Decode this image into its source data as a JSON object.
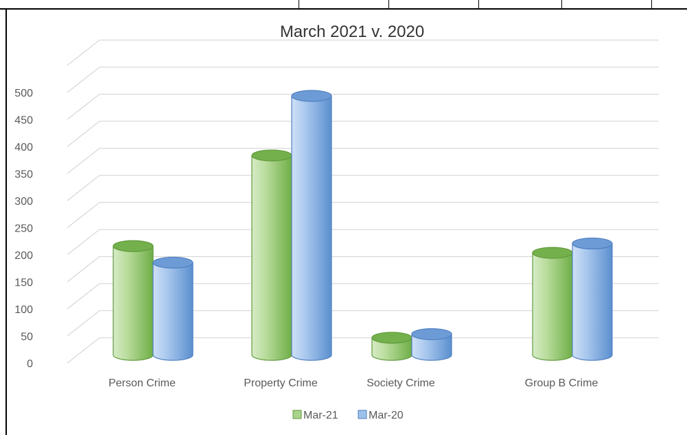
{
  "chart_data": {
    "type": "bar",
    "title": "March 2021 v. 2020",
    "categories": [
      "Person Crime",
      "Property Crime",
      "Society Crime",
      "Group B Crime"
    ],
    "series": [
      {
        "name": "Mar-21",
        "values": [
          210,
          385,
          33,
          197
        ],
        "color": "#8cc36a"
      },
      {
        "name": "Mar-20",
        "values": [
          178,
          500,
          40,
          215
        ],
        "color": "#7aa9de"
      }
    ],
    "ylim": [
      0,
      500
    ],
    "yticks": [
      0,
      50,
      100,
      150,
      200,
      250,
      300,
      350,
      400,
      450,
      500
    ],
    "grid": true,
    "legend": "bottom",
    "xlabel": "",
    "ylabel": ""
  }
}
